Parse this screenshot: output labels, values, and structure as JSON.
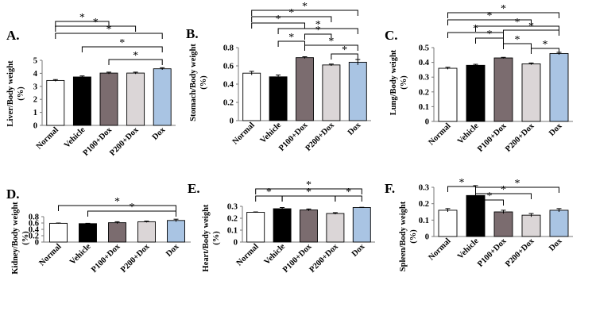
{
  "figure": {
    "categories": [
      "Normal",
      "Vehicle",
      "P100+Dox",
      "P200+Dox",
      "Dox"
    ],
    "bar_fills": [
      "#ffffff",
      "#000000",
      "#7b6c6f",
      "#dbd6d7",
      "#a9c4e3"
    ],
    "significance_marker": "*"
  },
  "chart_data": [
    {
      "panel": "A.",
      "type": "bar",
      "ylabel": "Liver/Body weight (%)",
      "ylim": [
        0,
        5
      ],
      "yticks": [
        "0",
        "1",
        "2",
        "3",
        "4",
        "5"
      ],
      "categories": [
        "Normal",
        "Vehicle",
        "P100+Dox",
        "P200+Dox",
        "Dox"
      ],
      "values": [
        3.45,
        3.72,
        4.02,
        4.02,
        4.35
      ],
      "errors": [
        0.07,
        0.08,
        0.07,
        0.07,
        0.08
      ],
      "brackets": [
        {
          "from": 0,
          "to": 4,
          "label": "*"
        },
        {
          "from": 0,
          "to": 3,
          "label": "*"
        },
        {
          "from": 0,
          "to": 2,
          "label": "*"
        },
        {
          "from": 1,
          "to": 4,
          "label": "*"
        },
        {
          "from": 2,
          "to": 4,
          "label": "*"
        }
      ]
    },
    {
      "panel": "B.",
      "type": "bar",
      "ylabel": "Stomach/Body weight (%)",
      "ylim": [
        0,
        0.8
      ],
      "yticks": [
        "0",
        "0.2",
        "0.4",
        "0.6",
        "0.8"
      ],
      "categories": [
        "Normal",
        "Vehicle",
        "P100+Dox",
        "P200+Dox",
        "Dox"
      ],
      "values": [
        0.52,
        0.48,
        0.69,
        0.61,
        0.64
      ],
      "errors": [
        0.02,
        0.02,
        0.01,
        0.01,
        0.03
      ],
      "brackets": [
        {
          "from": 0,
          "to": 4,
          "label": "*"
        },
        {
          "from": 0,
          "to": 3,
          "label": "*"
        },
        {
          "from": 0,
          "to": 2,
          "label": "*"
        },
        {
          "from": 1,
          "to": 4,
          "label": "*"
        },
        {
          "from": 2,
          "to": 3,
          "label": "*"
        },
        {
          "from": 1,
          "to": 2,
          "label": "*"
        },
        {
          "from": 2,
          "to": 4,
          "label": "*"
        },
        {
          "from": 3,
          "to": 4,
          "label": "*"
        }
      ]
    },
    {
      "panel": "C.",
      "type": "bar",
      "ylabel": "Lung/Body weight (%)",
      "ylim": [
        0,
        0.5
      ],
      "yticks": [
        "0",
        "0.1",
        "0.2",
        "0.3",
        "0.4",
        "0.5"
      ],
      "categories": [
        "Normal",
        "Vehicle",
        "P100+Dox",
        "P200+Dox",
        "Dox"
      ],
      "values": [
        0.36,
        0.38,
        0.43,
        0.39,
        0.46
      ],
      "errors": [
        0.007,
        0.007,
        0.004,
        0.006,
        0.008
      ],
      "brackets": [
        {
          "from": 0,
          "to": 4,
          "label": "*"
        },
        {
          "from": 0,
          "to": 3,
          "label": "*"
        },
        {
          "from": 0,
          "to": 2,
          "label": "*"
        },
        {
          "from": 1,
          "to": 4,
          "label": "*"
        },
        {
          "from": 1,
          "to": 2,
          "label": "*"
        },
        {
          "from": 2,
          "to": 4,
          "label": "*"
        },
        {
          "from": 2,
          "to": 3,
          "label": "*"
        },
        {
          "from": 3,
          "to": 4,
          "label": "*"
        }
      ]
    },
    {
      "panel": "D.",
      "type": "bar",
      "ylabel": "Kidney/Body weight (%)",
      "ylim": [
        0,
        0.8
      ],
      "yticks": [
        "0",
        "0.2",
        "0.4",
        "0.6",
        "0.8"
      ],
      "categories": [
        "Normal",
        "Vehicle",
        "P100+Dox",
        "P200+Dox",
        "Dox"
      ],
      "values": [
        0.59,
        0.58,
        0.61,
        0.64,
        0.68
      ],
      "errors": [
        0.01,
        0.01,
        0.03,
        0.02,
        0.04
      ],
      "brackets": [
        {
          "from": 0,
          "to": 4,
          "label": "*"
        },
        {
          "from": 1,
          "to": 4,
          "label": "*"
        }
      ]
    },
    {
      "panel": "E.",
      "type": "bar",
      "ylabel": "Heart/Body weight (%)",
      "ylim": [
        0,
        0.3
      ],
      "yticks": [
        "0",
        "0.1",
        "0.2",
        "0.3"
      ],
      "categories": [
        "Normal",
        "Vehicle",
        "P100+Dox",
        "P200+Dox",
        "Dox"
      ],
      "values": [
        0.25,
        0.28,
        0.27,
        0.24,
        0.29
      ],
      "errors": [
        0.003,
        0.01,
        0.008,
        0.007,
        0.002
      ],
      "brackets": [
        {
          "from": 0,
          "to": 4,
          "label": "*"
        },
        {
          "from": 0,
          "to": 1,
          "label": "*"
        },
        {
          "from": 1,
          "to": 3,
          "label": "*"
        },
        {
          "from": 3,
          "to": 4,
          "label": "*"
        }
      ]
    },
    {
      "panel": "F.",
      "type": "bar",
      "ylabel": "Spleen/Body weight (%)",
      "ylim": [
        0,
        0.3
      ],
      "yticks": [
        "0",
        "0.1",
        "0.2",
        "0.3"
      ],
      "categories": [
        "Normal",
        "Vehicle",
        "P100+Dox",
        "P200+Dox",
        "Dox"
      ],
      "values": [
        0.16,
        0.25,
        0.15,
        0.13,
        0.16
      ],
      "errors": [
        0.01,
        0.06,
        0.01,
        0.01,
        0.01
      ],
      "brackets": [
        {
          "from": 0,
          "to": 1,
          "label": "*"
        },
        {
          "from": 1,
          "to": 4,
          "label": "*"
        },
        {
          "from": 1,
          "to": 3,
          "label": "*"
        },
        {
          "from": 1,
          "to": 2,
          "label": "*"
        }
      ]
    }
  ]
}
